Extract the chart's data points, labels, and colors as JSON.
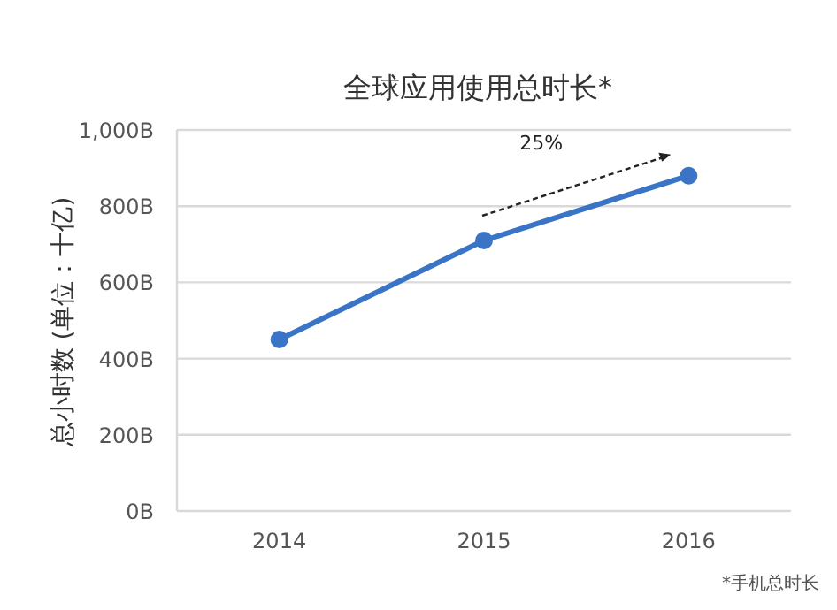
{
  "chart_data": {
    "type": "line",
    "title": "全球应用使用总时长*",
    "ylabel": "总小时数 (单位：十亿)",
    "categories": [
      "2014",
      "2015",
      "2016"
    ],
    "series": [
      {
        "color": "#3a74c6",
        "values": [
          450,
          710,
          880
        ]
      }
    ],
    "ylim": [
      0,
      1000
    ],
    "yticks": [
      {
        "value": 0,
        "label": "0B"
      },
      {
        "value": 200,
        "label": "200B"
      },
      {
        "value": 400,
        "label": "400B"
      },
      {
        "value": 600,
        "label": "600B"
      },
      {
        "value": 800,
        "label": "800B"
      },
      {
        "value": 1000,
        "label": "1,000B"
      }
    ],
    "grid": "y",
    "marker": "circle",
    "line_style": "solid",
    "annotations": [
      "25%",
      "*手机总时长"
    ]
  }
}
